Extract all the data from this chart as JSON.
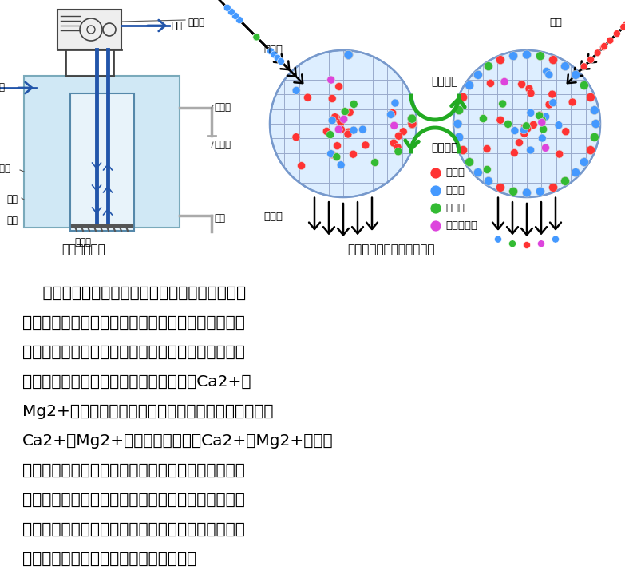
{
  "background_color": "#ffffff",
  "fig_width": 7.83,
  "fig_height": 7.24,
  "title_left": "软水机结构图",
  "title_right": "硬水软化和树脂再生示意图",
  "paragraph_text": [
    "    阳离子属于是以苯乙烯和二乙烯苯聚合，经硫酸",
    "磺化而制得的聚合物。生产过程中不含有明胶及其他",
    "任何动物提取物。水的硬度主要又馒、镁形成及表示",
    "，故一般采用阳离子交换树脂，将水中的Ca2+、",
    "Mg2+｛形成水垃的主要成分｝吸附出来，随着树脂内",
    "Ca2+、Mg2+的增加，树脂去除Ca2+、Mg2+的效能",
    "逐渐降低，当树脂吸取一定的馒镁离子之后，就必须",
    "进行再生，再生的过程中就是用盐筱中的食盐水冲洗",
    "树脂层，把树脂的硬度离子再置换出来，随再生液排",
    "出罐外，树脂就又恢复了软化交换功能。"
  ],
  "legend_items": [
    {
      "label": "钓离子",
      "color": "#ff3333"
    },
    {
      "label": "馒离子",
      "color": "#4499ff"
    },
    {
      "label": "镁离子",
      "color": "#33bb33"
    },
    {
      "label": "其他阳离子",
      "color": "#dd44dd"
    }
  ]
}
